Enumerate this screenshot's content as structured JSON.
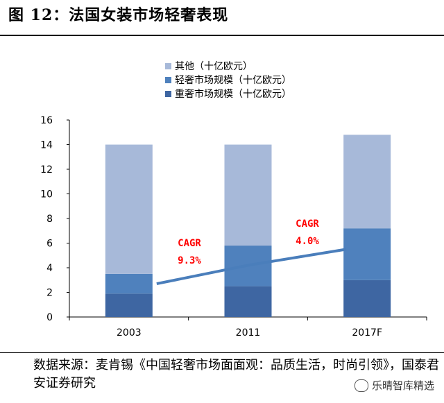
{
  "figure_title": "图 12：法国女装市场轻奢表现",
  "source_line": "数据来源：麦肯锡《中国轻奢市场面面观：品质生活，时尚引领》，国泰君安证券研究",
  "watermark": "乐晴智库精选",
  "chart_data": {
    "type": "bar",
    "stacked": true,
    "categories": [
      "2003",
      "2011",
      "2017F"
    ],
    "series": [
      {
        "name": "重奢市场规模（十亿欧元）",
        "values": [
          1.9,
          2.5,
          3.0
        ],
        "color": "#3E66A2"
      },
      {
        "name": "轻奢市场规模（十亿欧元）",
        "values": [
          1.6,
          3.3,
          4.2
        ],
        "color": "#4F81BD"
      },
      {
        "name": "其他（十亿欧元）",
        "values": [
          10.5,
          8.2,
          7.6
        ],
        "color": "#A7B9D9"
      }
    ],
    "y_ticks": [
      0,
      2,
      4,
      6,
      8,
      10,
      12,
      14,
      16
    ],
    "ylim": [
      0,
      16
    ],
    "grid": false,
    "legend_position": "top-center",
    "annotations": [
      {
        "line1": "CAGR",
        "line2": "9.3%"
      },
      {
        "line1": "CAGR",
        "line2": "4.0%"
      }
    ],
    "trend_line": {
      "x": [
        "2003",
        "2011",
        "2017F"
      ],
      "y": [
        2.7,
        4.2,
        5.5
      ],
      "color": "#4A7EBB"
    }
  }
}
